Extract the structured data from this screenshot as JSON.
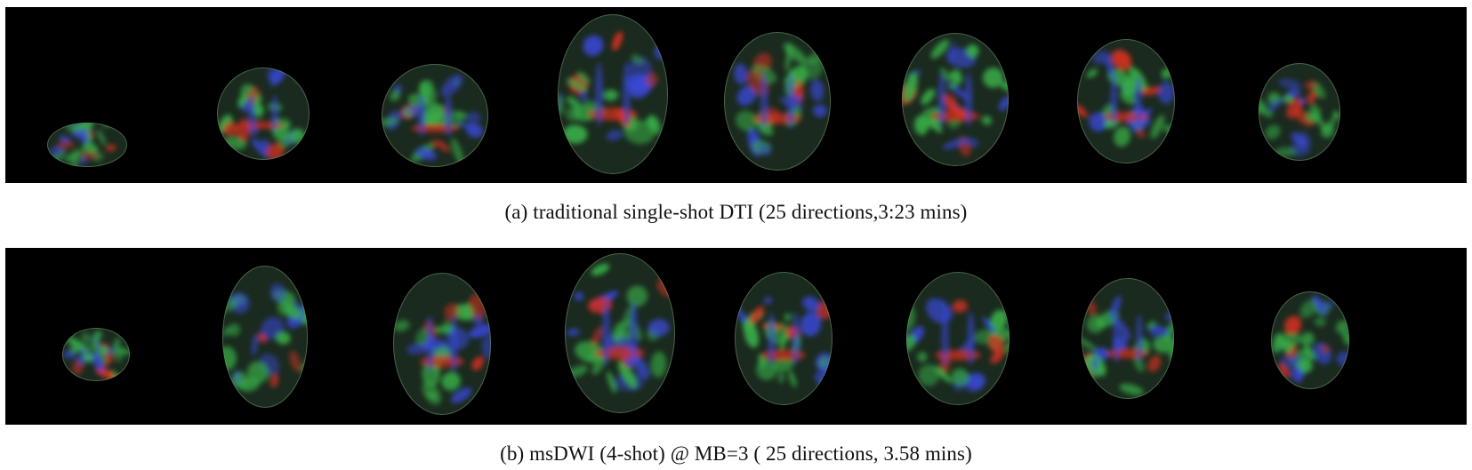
{
  "figure": {
    "panels": [
      {
        "caption": "(a)  traditional single-shot DTI (25 directions,3:23 mins)",
        "slice_count": 8
      },
      {
        "caption": "(b)  msDWI (4-shot) @ MB=3 ( 25 directions, 3.58 mins)",
        "slice_count": 8
      }
    ],
    "colors": {
      "background": "#000000",
      "red": "#d83020",
      "green": "#38b048",
      "blue": "#3848d8"
    }
  }
}
